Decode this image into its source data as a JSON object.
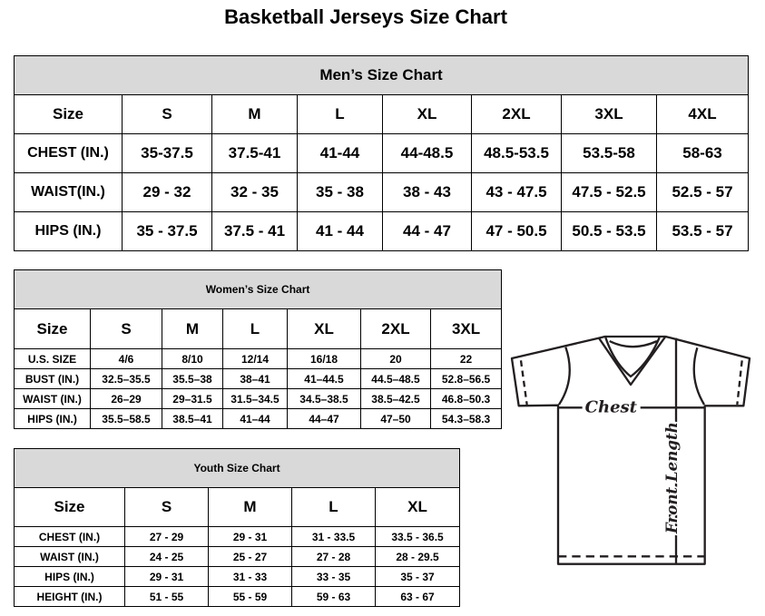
{
  "title": "Basketball Jerseys Size Chart",
  "men": {
    "heading": "Men’s Size Chart",
    "sizes": [
      "Size",
      "S",
      "M",
      "L",
      "XL",
      "2XL",
      "3XL",
      "4XL"
    ],
    "rows": [
      [
        "CHEST (IN.)",
        "35-37.5",
        "37.5-41",
        "41-44",
        "44-48.5",
        "48.5-53.5",
        "53.5-58",
        "58-63"
      ],
      [
        "WAIST(IN.)",
        "29 - 32",
        "32 - 35",
        "35 - 38",
        "38 - 43",
        "43 - 47.5",
        "47.5 - 52.5",
        "52.5 - 57"
      ],
      [
        "HIPS (IN.)",
        "35 - 37.5",
        "37.5 - 41",
        "41 - 44",
        "44 - 47",
        "47 - 50.5",
        "50.5 - 53.5",
        "53.5 - 57"
      ]
    ]
  },
  "women": {
    "heading": "Women’s Size Chart",
    "sizes": [
      "Size",
      "S",
      "M",
      "L",
      "XL",
      "2XL",
      "3XL"
    ],
    "rows": [
      [
        "U.S. SIZE",
        "4/6",
        "8/10",
        "12/14",
        "16/18",
        "20",
        "22"
      ],
      [
        "BUST (IN.)",
        "32.5–35.5",
        "35.5–38",
        "38–41",
        "41–44.5",
        "44.5–48.5",
        "52.8–56.5"
      ],
      [
        "WAIST (IN.)",
        "26–29",
        "29–31.5",
        "31.5–34.5",
        "34.5–38.5",
        "38.5–42.5",
        "46.8–50.3"
      ],
      [
        "HIPS (IN.)",
        "35.5–58.5",
        "38.5–41",
        "41–44",
        "44–47",
        "47–50",
        "54.3–58.3"
      ]
    ]
  },
  "youth": {
    "heading": "Youth Size Chart",
    "sizes": [
      "Size",
      "S",
      "M",
      "L",
      "XL"
    ],
    "rows": [
      [
        "CHEST (IN.)",
        "27 - 29",
        "29 - 31",
        "31 - 33.5",
        "33.5 - 36.5"
      ],
      [
        "WAIST (IN.)",
        "24 - 25",
        "25 - 27",
        "27 - 28",
        "28 - 29.5"
      ],
      [
        "HIPS (IN.)",
        "29 - 31",
        "31 - 33",
        "33 - 35",
        "35 - 37"
      ],
      [
        "HEIGHT (IN.)",
        "51 - 55",
        "55 - 59",
        "59 - 63",
        "63 - 67"
      ]
    ]
  },
  "diagram": {
    "chest_label": "Chest",
    "length_label": "Front Length"
  }
}
